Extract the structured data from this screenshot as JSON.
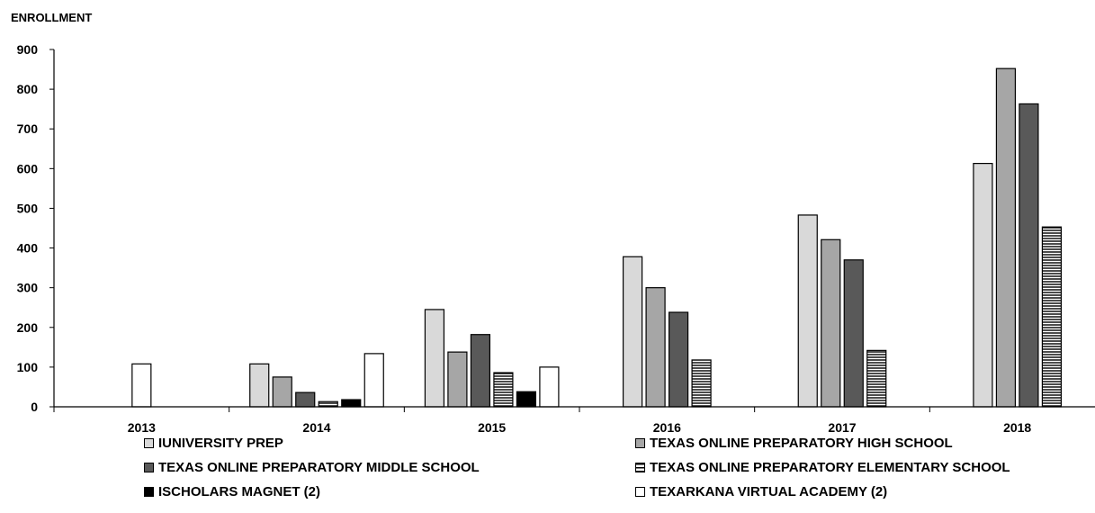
{
  "chart_data": {
    "type": "bar",
    "ylabel": "ENROLLMENT",
    "xlabel": "",
    "ylim": [
      0,
      900
    ],
    "yticks": [
      0,
      100,
      200,
      300,
      400,
      500,
      600,
      700,
      800,
      900
    ],
    "categories": [
      "2013",
      "2014",
      "2015",
      "2016",
      "2017",
      "2018"
    ],
    "grid": false,
    "legend_position": "bottom",
    "series": [
      {
        "name": "IUNIVERSITY PREP",
        "fill": "#d9d9d9",
        "pattern": "solid",
        "values": [
          null,
          108,
          245,
          378,
          483,
          613
        ]
      },
      {
        "name": "TEXAS ONLINE PREPARATORY HIGH SCHOOL",
        "fill": "#a6a6a6",
        "pattern": "solid",
        "values": [
          null,
          75,
          138,
          300,
          421,
          852
        ]
      },
      {
        "name": "TEXAS ONLINE PREPARATORY MIDDLE SCHOOL",
        "fill": "#595959",
        "pattern": "solid",
        "values": [
          null,
          36,
          182,
          238,
          370,
          763
        ]
      },
      {
        "name": "TEXAS ONLINE PREPARATORY ELEMENTARY SCHOOL",
        "fill": "#ffffff",
        "pattern": "horizontal-lines",
        "values": [
          null,
          13,
          86,
          118,
          142,
          453
        ]
      },
      {
        "name": "ISCHOLARS MAGNET (2)",
        "fill": "#000000",
        "pattern": "solid",
        "values": [
          null,
          18,
          38,
          null,
          null,
          null
        ]
      },
      {
        "name": "TEXARKANA VIRTUAL ACADEMY (2)",
        "fill": "#ffffff",
        "pattern": "solid",
        "values": [
          108,
          134,
          100,
          null,
          null,
          null
        ]
      }
    ]
  }
}
